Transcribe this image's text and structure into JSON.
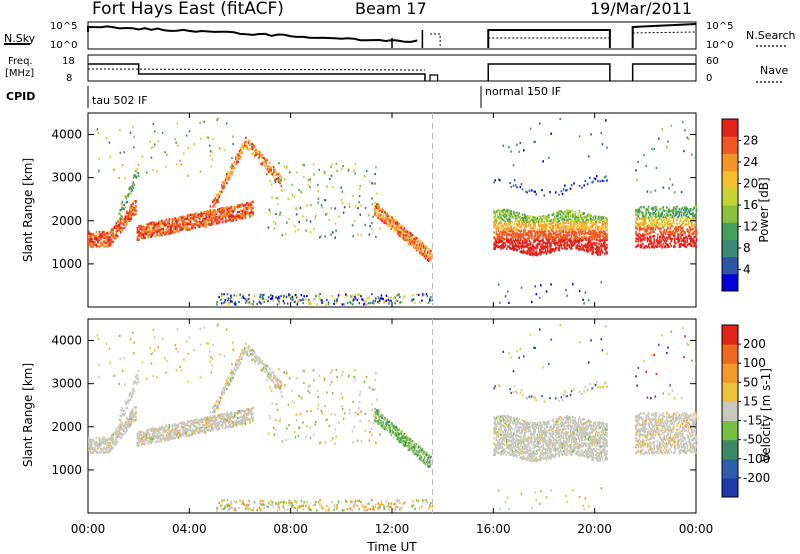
{
  "header": {
    "station": "Fort Hays East (fitACF)",
    "beam": "Beam 17",
    "date": "19/Mar/2011"
  },
  "noise_panel": {
    "left_label": "N.Sky",
    "right_label": "N.Search",
    "ticks": [
      "10^5",
      "10^0"
    ],
    "right_ticks": [
      "10^5",
      "10^0"
    ]
  },
  "freq_panel": {
    "left_label_1": "Freq.",
    "left_label_2": "[MHz]",
    "left_ticks": [
      "18",
      "8"
    ],
    "right_label": "Nave",
    "right_ticks": [
      "60",
      "0"
    ]
  },
  "cpid": {
    "label": "CPID",
    "segments": [
      "tau 502 IF",
      "normal 150 IF"
    ]
  },
  "chart_data": [
    {
      "type": "heatmap",
      "name": "power",
      "ylabel": "Slant Range [km]",
      "xlabel": "",
      "ylim": [
        0,
        4500
      ],
      "yticks": [
        "1000",
        "2000",
        "3000",
        "4000"
      ],
      "colorbar_label": "Power [dB]",
      "colorbar_ticks": [
        "4",
        "8",
        "12",
        "16",
        "20",
        "24",
        "28"
      ],
      "colors": [
        "#0000dd",
        "#2f55a8",
        "#3a8a75",
        "#44a058",
        "#86c23c",
        "#c7d437",
        "#f4c02c",
        "#f59429",
        "#ef5a22",
        "#e2231a"
      ]
    },
    {
      "type": "heatmap",
      "name": "velocity",
      "ylabel": "Slant Range [km]",
      "xlabel": "Time UT",
      "ylim": [
        0,
        4500
      ],
      "yticks": [
        "1000",
        "2000",
        "3000",
        "4000"
      ],
      "xticks": [
        "00:00",
        "04:00",
        "08:00",
        "12:00",
        "16:00",
        "20:00",
        "00:00"
      ],
      "colorbar_label": "Velocity [m s-1]",
      "colorbar_ticks": [
        "200",
        "100",
        "50",
        "15",
        "-15",
        "-50",
        "-100",
        "-200"
      ],
      "colors": [
        "#1e3aa8",
        "#2b5fae",
        "#3c8a63",
        "#76c043",
        "#c8c8c0",
        "#f0c23a",
        "#f39a2a",
        "#ee6a20",
        "#e2231a"
      ]
    }
  ]
}
